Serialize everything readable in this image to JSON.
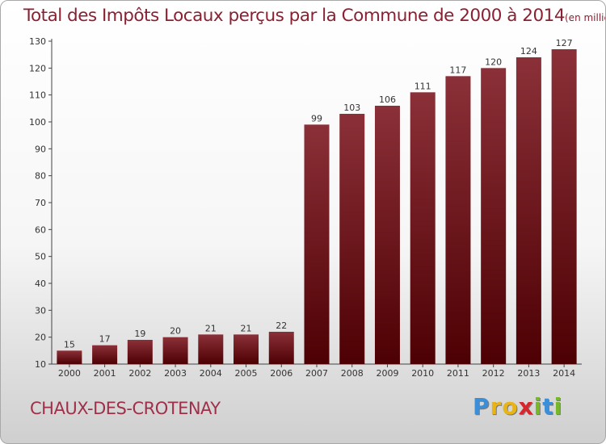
{
  "title": "Total des Impôts Locaux perçus par la Commune de 2000 à 2014",
  "unit_label": "(en milliers d'€)",
  "commune": "CHAUX-DES-CROTENAY",
  "logo": {
    "letters": [
      "P",
      "r",
      "o",
      "x",
      "i",
      "t",
      "i"
    ],
    "colors": [
      "#3a8fd8",
      "#e8b416",
      "#e8b416",
      "#d8262c",
      "#76b82a",
      "#3a8fd8",
      "#76b82a"
    ]
  },
  "colors": {
    "bar_top": "#8b3038",
    "bar_bottom": "#4d0003",
    "title": "#8a2032"
  },
  "chart_data": {
    "type": "bar",
    "title": "Total des Impôts Locaux perçus par la Commune de 2000 à 2014",
    "xlabel": "",
    "ylabel": "(en milliers d'€)",
    "ylim": [
      10,
      130
    ],
    "yticks": [
      10,
      20,
      30,
      40,
      50,
      60,
      70,
      80,
      90,
      100,
      110,
      120,
      130
    ],
    "grid": false,
    "categories": [
      "2000",
      "2001",
      "2002",
      "2003",
      "2004",
      "2005",
      "2006",
      "2007",
      "2008",
      "2009",
      "2010",
      "2011",
      "2012",
      "2013",
      "2014"
    ],
    "values": [
      15,
      17,
      19,
      20,
      21,
      21,
      22,
      99,
      103,
      106,
      111,
      117,
      120,
      124,
      127
    ]
  }
}
